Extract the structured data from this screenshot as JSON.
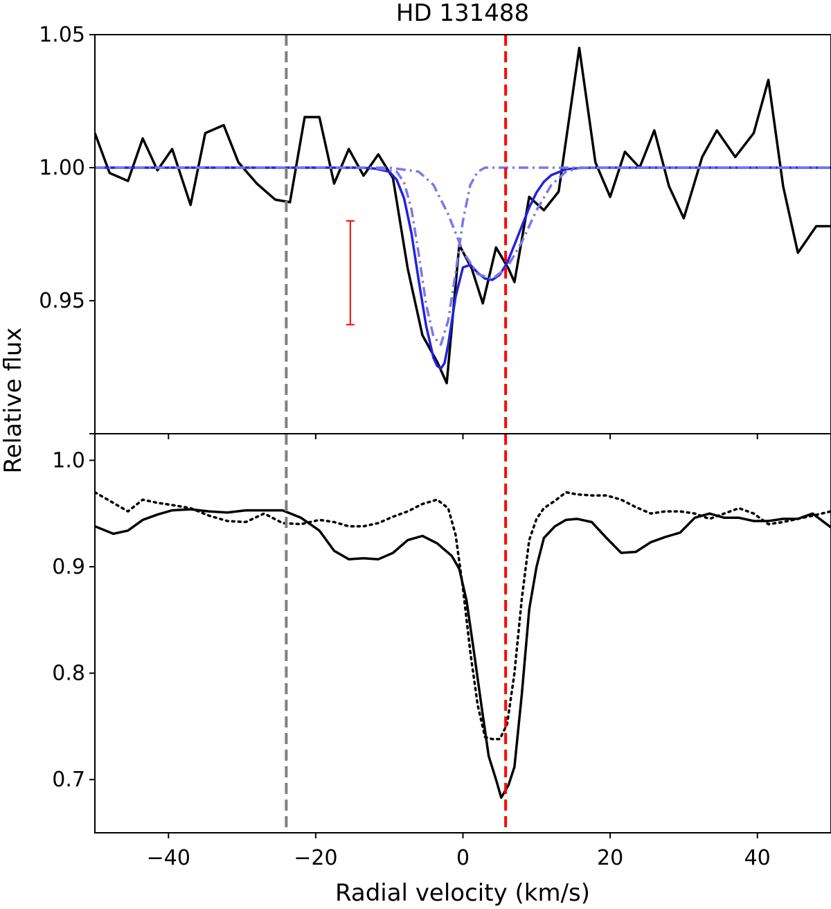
{
  "chart_data": {
    "type": "line",
    "title": "HD 131488",
    "xlabel": "Radial velocity (km/s)",
    "ylabel": "Relative flux",
    "xlim": [
      -50,
      50
    ],
    "x_ticks": [
      -40,
      -20,
      0,
      20,
      40
    ],
    "x_tick_labels": [
      "−40",
      "−20",
      "0",
      "20",
      "40"
    ],
    "grid": false,
    "vertical_lines": [
      {
        "x": -24,
        "color": "#808080",
        "style": "dashed"
      },
      {
        "x": 5.8,
        "color": "#ff0000",
        "style": "dashed"
      }
    ],
    "panels": [
      {
        "name": "top",
        "ylim": [
          0.9,
          1.05
        ],
        "y_ticks": [
          0.95,
          1.0,
          1.05
        ],
        "y_tick_labels": [
          "0.95",
          "1.00",
          "1.05"
        ],
        "error_bar": {
          "x": -15.3,
          "y_low": 0.941,
          "y_high": 0.98,
          "color": "#ff0000"
        },
        "series": [
          {
            "style": "solid",
            "color": "#000000",
            "x": [
              -50,
              -48,
              -45.5,
              -43.5,
              -41.5,
              -39.5,
              -37,
              -35,
              -32.5,
              -30.5,
              -28,
              -25.5,
              -23.5,
              -21.5,
              -19.5,
              -17.5,
              -15.5,
              -13.5,
              -11.5,
              -9.5,
              -7.5,
              -5.5,
              -3.5,
              -2.2,
              -0.5,
              1.2,
              2.7,
              4.5,
              6.2,
              7.0,
              9.0,
              11.0,
              13.0,
              15.8,
              18.0,
              20.0,
              22.0,
              24.0,
              26.0,
              28.0,
              30.0,
              32.5,
              34.5,
              37.0,
              39.5,
              41.5,
              43.5,
              45.5,
              48.0,
              50.0
            ],
            "y": [
              1.013,
              0.998,
              0.995,
              1.011,
              0.999,
              1.007,
              0.986,
              1.013,
              1.016,
              1.002,
              0.994,
              0.988,
              0.987,
              1.019,
              1.019,
              0.994,
              1.007,
              0.997,
              1.005,
              0.996,
              0.962,
              0.937,
              0.927,
              0.919,
              0.971,
              0.962,
              0.949,
              0.97,
              0.962,
              0.957,
              0.989,
              0.984,
              0.991,
              1.045,
              1.002,
              0.989,
              1.006,
              1.0,
              1.014,
              0.993,
              0.981,
              1.004,
              1.014,
              1.004,
              1.013,
              1.033,
              0.993,
              0.968,
              0.978,
              0.978
            ]
          },
          {
            "style": "solid",
            "color": "#2222dd",
            "x": [
              -50,
              -14,
              -12,
              -10,
              -9,
              -8,
              -7,
              -6,
              -5,
              -4,
              -3.5,
              -3,
              -2.5,
              -2,
              -1.5,
              -1,
              0,
              1,
              2,
              3,
              4,
              5,
              6,
              7,
              8,
              9,
              10,
              11,
              12,
              14,
              16,
              18,
              20,
              50
            ],
            "y": [
              1.0,
              1.0,
              0.9997,
              0.9985,
              0.9955,
              0.9885,
              0.9755,
              0.9575,
              0.9405,
              0.9285,
              0.9255,
              0.9245,
              0.9265,
              0.9335,
              0.9425,
              0.9515,
              0.9625,
              0.9635,
              0.9605,
              0.9583,
              0.9578,
              0.9598,
              0.9642,
              0.971,
              0.978,
              0.985,
              0.9907,
              0.9947,
              0.9972,
              0.9994,
              0.9999,
              1.0,
              1.0,
              1.0
            ]
          },
          {
            "style": "dashdot",
            "color": "#7777ee",
            "x": [
              -50,
              -12,
              -9,
              -8,
              -7,
              -6,
              -5,
              -4,
              -3,
              -2,
              -1,
              0,
              1,
              2,
              3,
              50
            ],
            "y": [
              1.0,
              1.0,
              0.9985,
              0.9945,
              0.9845,
              0.9675,
              0.9485,
              0.9365,
              0.9335,
              0.9425,
              0.9605,
              0.98,
              0.9935,
              0.9985,
              1.0,
              1.0
            ]
          },
          {
            "style": "dashdot",
            "color": "#7777ee",
            "x": [
              -50,
              -10,
              -6,
              -4,
              -2,
              0,
              2,
              4,
              6,
              8,
              10,
              12,
              14,
              16,
              50
            ],
            "y": [
              1.0,
              1.0,
              0.9985,
              0.9935,
              0.9825,
              0.9685,
              0.96,
              0.9582,
              0.9625,
              0.972,
              0.984,
              0.9935,
              0.9985,
              1.0,
              1.0
            ]
          }
        ]
      },
      {
        "name": "bottom",
        "ylim": [
          0.65,
          1.025
        ],
        "y_ticks": [
          0.7,
          0.8,
          0.9,
          1.0
        ],
        "y_tick_labels": [
          "0.7",
          "0.8",
          "0.9",
          "1.0"
        ],
        "series": [
          {
            "style": "solid",
            "color": "#000000",
            "x": [
              -50,
              -47.5,
              -45.5,
              -43.5,
              -41.5,
              -39.5,
              -37,
              -34.5,
              -32,
              -29.5,
              -27,
              -24.5,
              -22,
              -19.5,
              -17.5,
              -15.5,
              -13.5,
              -11.5,
              -9.5,
              -7.5,
              -5.5,
              -3.5,
              -1.5,
              -0.5,
              0.5,
              1.5,
              2.5,
              3.5,
              4.5,
              5.2,
              6.2,
              7.0,
              8.0,
              9.0,
              10.0,
              11.0,
              12.5,
              14.0,
              15.5,
              17.5,
              19.5,
              21.5,
              23.5,
              25.5,
              27.5,
              29.5,
              31.5,
              33.5,
              35.5,
              37.5,
              39.5,
              41.5,
              43.5,
              45.5,
              47.5,
              50
            ],
            "y": [
              0.938,
              0.931,
              0.934,
              0.944,
              0.949,
              0.953,
              0.954,
              0.952,
              0.951,
              0.953,
              0.953,
              0.953,
              0.946,
              0.934,
              0.915,
              0.907,
              0.908,
              0.907,
              0.913,
              0.925,
              0.929,
              0.922,
              0.91,
              0.898,
              0.868,
              0.82,
              0.77,
              0.722,
              0.7,
              0.683,
              0.695,
              0.712,
              0.78,
              0.86,
              0.9,
              0.927,
              0.938,
              0.944,
              0.945,
              0.942,
              0.927,
              0.913,
              0.914,
              0.923,
              0.928,
              0.932,
              0.946,
              0.95,
              0.946,
              0.946,
              0.943,
              0.943,
              0.945,
              0.945,
              0.95,
              0.937
            ]
          },
          {
            "style": "dotted",
            "color": "#000000",
            "x": [
              -50,
              -47.5,
              -45.5,
              -43.5,
              -41.5,
              -39.5,
              -37,
              -34.5,
              -32,
              -29.5,
              -27,
              -24.5,
              -22,
              -19.5,
              -17.5,
              -15.5,
              -13.5,
              -11.5,
              -9.5,
              -7.5,
              -5.5,
              -3.5,
              -2.0,
              -1.0,
              0.0,
              1.0,
              2.0,
              3.0,
              4.0,
              5.0,
              6.0,
              7.0,
              8.0,
              9.0,
              10.0,
              11.0,
              12.5,
              14.0,
              15.5,
              17.5,
              19.5,
              21.5,
              23.5,
              25.5,
              27.5,
              29.5,
              31.5,
              33.5,
              35.5,
              37.5,
              39.5,
              41.5,
              43.5,
              45.5,
              47.5,
              50
            ],
            "y": [
              0.97,
              0.96,
              0.952,
              0.963,
              0.96,
              0.958,
              0.955,
              0.948,
              0.943,
              0.942,
              0.95,
              0.941,
              0.94,
              0.944,
              0.942,
              0.938,
              0.938,
              0.941,
              0.947,
              0.952,
              0.959,
              0.963,
              0.955,
              0.93,
              0.88,
              0.82,
              0.77,
              0.74,
              0.738,
              0.738,
              0.752,
              0.8,
              0.87,
              0.925,
              0.945,
              0.955,
              0.962,
              0.97,
              0.968,
              0.967,
              0.967,
              0.963,
              0.956,
              0.95,
              0.952,
              0.952,
              0.95,
              0.945,
              0.95,
              0.955,
              0.95,
              0.94,
              0.942,
              0.945,
              0.948,
              0.952
            ]
          }
        ]
      }
    ]
  }
}
